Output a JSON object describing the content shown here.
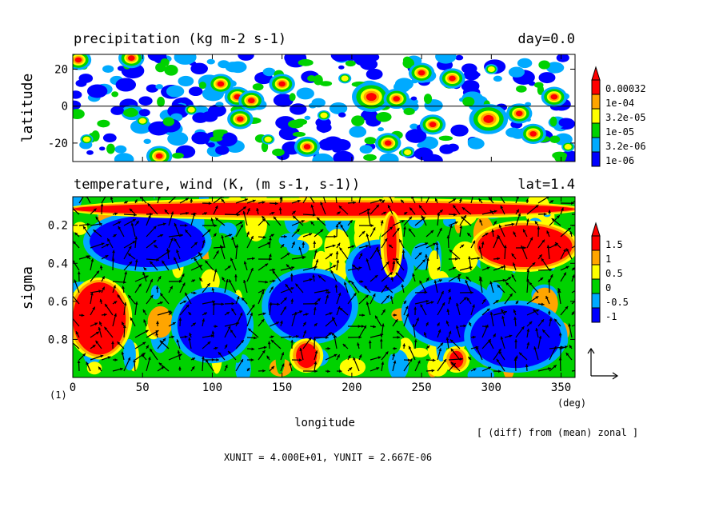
{
  "chart_data": [
    {
      "type": "heatmap",
      "title": "precipitation (kg m-2 s-1)",
      "title_right": "day=0.0",
      "ylabel": "latitude",
      "xlim": [
        0,
        360
      ],
      "ylim": [
        -30,
        28
      ],
      "ytick_labels": [
        "20",
        "0",
        "-20"
      ],
      "ytick_values": [
        20,
        0,
        -20
      ],
      "zero_line": true,
      "colorbar": {
        "levels": [
          "0.00032",
          "1e-04",
          "3.2e-05",
          "1e-05",
          "3.2e-06",
          "1e-06"
        ],
        "colors": [
          "#ff0000",
          "#ffa500",
          "#ffff00",
          "#00d200",
          "#00aaff",
          "#0000ff"
        ]
      },
      "blobs": [
        {
          "x": 4,
          "y": 25,
          "r": 2
        },
        {
          "x": 42,
          "y": 26,
          "r": 2
        },
        {
          "x": 62,
          "y": -27,
          "r": 2
        },
        {
          "x": 106,
          "y": 12,
          "r": 2
        },
        {
          "x": 118,
          "y": 5,
          "r": 2
        },
        {
          "x": 128,
          "y": 3,
          "r": 2
        },
        {
          "x": 120,
          "y": -7,
          "r": 2
        },
        {
          "x": 150,
          "y": 12,
          "r": 2
        },
        {
          "x": 214,
          "y": 5,
          "r": 3
        },
        {
          "x": 232,
          "y": 4,
          "r": 2
        },
        {
          "x": 250,
          "y": 18,
          "r": 2
        },
        {
          "x": 272,
          "y": 15,
          "r": 2
        },
        {
          "x": 258,
          "y": -10,
          "r": 2
        },
        {
          "x": 226,
          "y": -20,
          "r": 2
        },
        {
          "x": 298,
          "y": -7,
          "r": 3
        },
        {
          "x": 320,
          "y": -4,
          "r": 2
        },
        {
          "x": 345,
          "y": 5,
          "r": 2
        },
        {
          "x": 168,
          "y": -22,
          "r": 2
        },
        {
          "x": 330,
          "y": -15,
          "r": 2
        },
        {
          "x": 50,
          "y": -8,
          "r": 1
        },
        {
          "x": 85,
          "y": -2,
          "r": 1
        },
        {
          "x": 180,
          "y": -5,
          "r": 1
        },
        {
          "x": 195,
          "y": 15,
          "r": 1
        },
        {
          "x": 300,
          "y": 20,
          "r": 1
        },
        {
          "x": 10,
          "y": -18,
          "r": 1
        },
        {
          "x": 355,
          "y": -22,
          "r": 1
        },
        {
          "x": 140,
          "y": -18,
          "r": 1
        },
        {
          "x": 240,
          "y": -25,
          "r": 1
        }
      ]
    },
    {
      "type": "heatmap",
      "title": "temperature, wind (K, (m s-1, s-1))",
      "title_right": "lat=1.4",
      "xlabel": "longitude",
      "ylabel": "sigma",
      "xlim": [
        0,
        360
      ],
      "ylim": [
        0.05,
        1.0
      ],
      "x_unit_label": "(deg)",
      "corner_label": "(1)",
      "xtick_labels": [
        "0",
        "50",
        "100",
        "150",
        "200",
        "250",
        "300",
        "350"
      ],
      "xtick_values": [
        0,
        50,
        100,
        150,
        200,
        250,
        300,
        350
      ],
      "ytick_labels": [
        "0.2",
        "0.4",
        "0.6",
        "0.8"
      ],
      "ytick_values": [
        0.2,
        0.4,
        0.6,
        0.8
      ],
      "colorbar": {
        "levels": [
          "1.5",
          "1",
          "0.5",
          "0",
          "-0.5",
          "-1"
        ],
        "colors": [
          "#ff0000",
          "#ffa500",
          "#ffff00",
          "#00d200",
          "#00aaff",
          "#0000ff"
        ]
      },
      "note": "[ (diff) from (mean) zonal ]",
      "units_line": "XUNIT = 4.000E+01, YUNIT = 2.667E-06",
      "warm_regions": [
        {
          "x": [
            0,
            38
          ],
          "y": [
            0.5,
            0.88
          ]
        },
        {
          "x": [
            0,
            360
          ],
          "y": [
            0.08,
            0.15
          ]
        },
        {
          "x": [
            290,
            358
          ],
          "y": [
            0.2,
            0.42
          ]
        },
        {
          "x": [
            160,
            175
          ],
          "y": [
            0.82,
            0.95
          ]
        },
        {
          "x": [
            270,
            280
          ],
          "y": [
            0.86,
            0.95
          ]
        },
        {
          "x": [
            225,
            232
          ],
          "y": [
            0.15,
            0.45
          ]
        }
      ],
      "cold_regions": [
        {
          "x": [
            12,
            95
          ],
          "y": [
            0.15,
            0.42
          ]
        },
        {
          "x": [
            140,
            200
          ],
          "y": [
            0.45,
            0.8
          ]
        },
        {
          "x": [
            240,
            300
          ],
          "y": [
            0.5,
            0.82
          ]
        },
        {
          "x": [
            200,
            240
          ],
          "y": [
            0.3,
            0.55
          ]
        },
        {
          "x": [
            75,
            125
          ],
          "y": [
            0.55,
            0.9
          ]
        },
        {
          "x": [
            285,
            350
          ],
          "y": [
            0.62,
            0.95
          ]
        }
      ]
    }
  ]
}
